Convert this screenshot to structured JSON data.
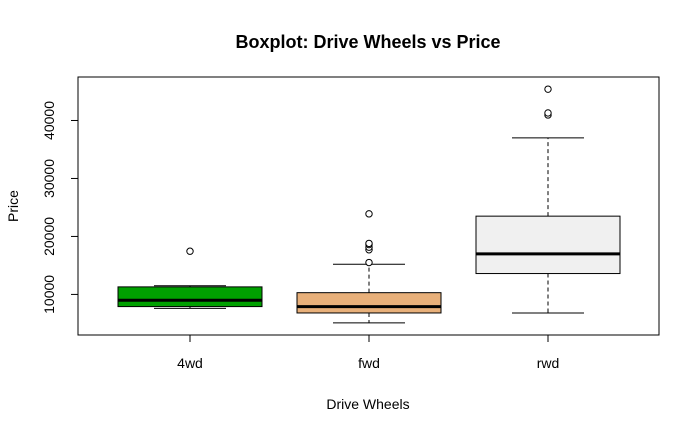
{
  "chart_data": {
    "type": "boxplot",
    "title": "Boxplot: Drive Wheels vs Price",
    "xlabel": "Drive Wheels",
    "ylabel": "Price",
    "ylim": [
      3000,
      47500
    ],
    "yticks": [
      10000,
      20000,
      30000,
      40000
    ],
    "grid": false,
    "categories": [
      "4wd",
      "fwd",
      "rwd"
    ],
    "boxes": [
      {
        "category": "4wd",
        "color": "#00a000",
        "min": 7600,
        "q1": 7900,
        "median": 9000,
        "q3": 11300,
        "max": 11500,
        "outliers": [
          17450
        ]
      },
      {
        "category": "fwd",
        "color": "#e8b07a",
        "min": 5100,
        "q1": 6800,
        "median": 7900,
        "q3": 10300,
        "max": 15200,
        "outliers": [
          15500,
          17700,
          18150,
          18600,
          18800,
          23900
        ]
      },
      {
        "category": "rwd",
        "color": "#f0f0f0",
        "min": 6800,
        "q1": 13600,
        "median": 17000,
        "q3": 23500,
        "max": 37000,
        "outliers": [
          40950,
          41300,
          45400
        ]
      }
    ]
  }
}
